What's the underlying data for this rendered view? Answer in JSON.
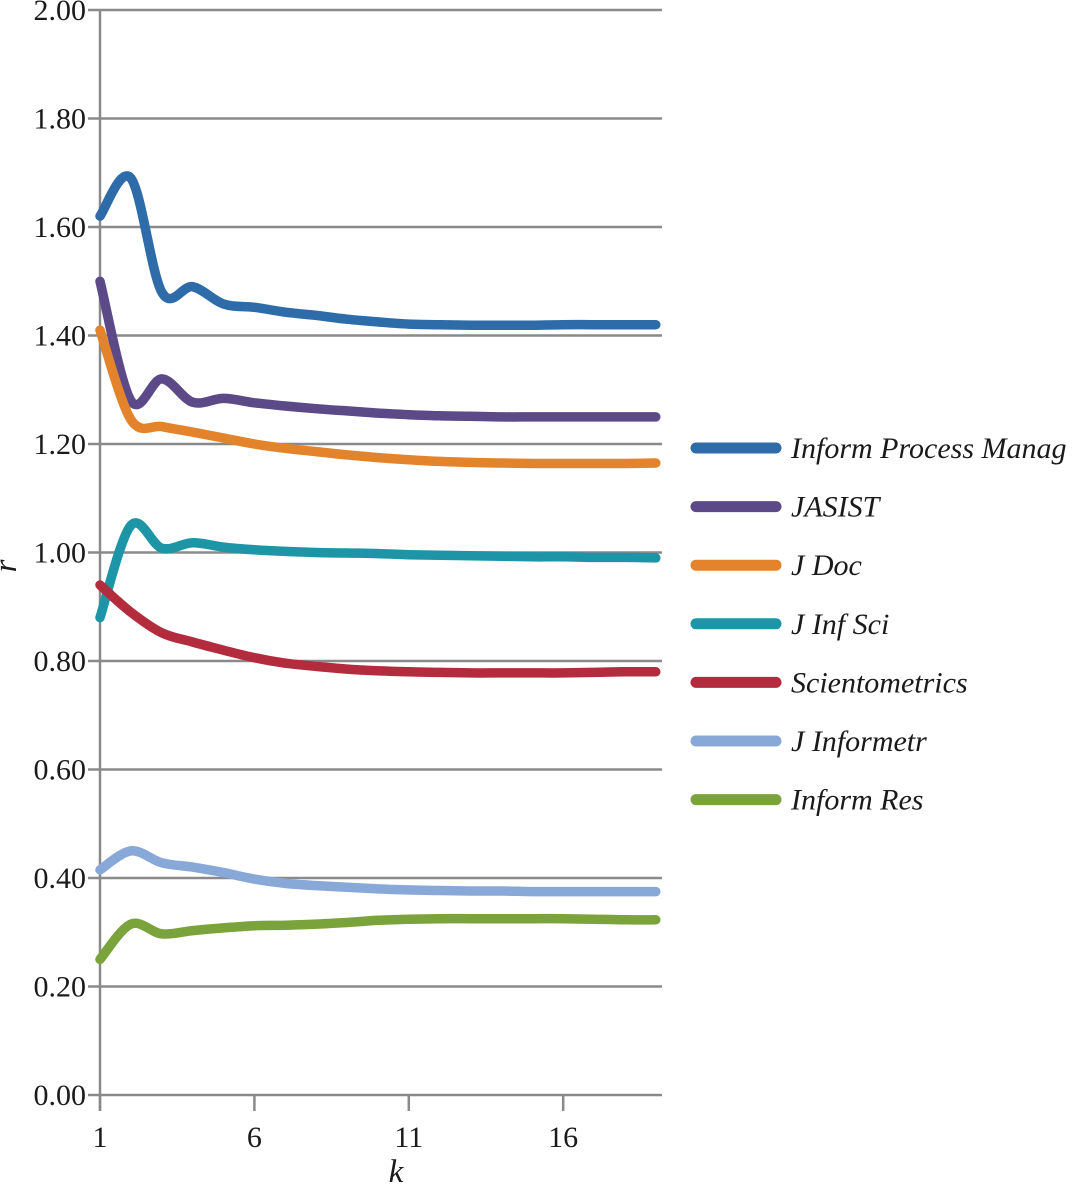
{
  "figure": {
    "background": "#ffffff",
    "grid_color": "#8a8a8a",
    "text_color": "#1a1a1a"
  },
  "chart_data": {
    "type": "line",
    "title": "",
    "xlabel": "k",
    "ylabel": "r",
    "xlim": [
      1,
      19.2
    ],
    "ylim": [
      0,
      2.0
    ],
    "x_ticks": [
      1,
      6,
      11,
      16
    ],
    "y_ticks": [
      0.0,
      0.2,
      0.4,
      0.6,
      0.8,
      1.0,
      1.2,
      1.4,
      1.6,
      1.8,
      2.0
    ],
    "grid": "horizontal",
    "legend_position": "right",
    "x": [
      1,
      2,
      3,
      4,
      5,
      6,
      7,
      8,
      9,
      10,
      11,
      12,
      13,
      14,
      15,
      16,
      17,
      18,
      19
    ],
    "series": [
      {
        "name": "Inform Process Manag",
        "color": "#2d6ca9",
        "values": [
          1.62,
          1.69,
          1.48,
          1.49,
          1.458,
          1.452,
          1.443,
          1.437,
          1.43,
          1.425,
          1.421,
          1.42,
          1.419,
          1.419,
          1.419,
          1.42,
          1.42,
          1.42,
          1.42
        ]
      },
      {
        "name": "JASIST",
        "color": "#5b4a87",
        "values": [
          1.5,
          1.28,
          1.32,
          1.277,
          1.284,
          1.276,
          1.27,
          1.265,
          1.261,
          1.257,
          1.254,
          1.252,
          1.251,
          1.25,
          1.25,
          1.25,
          1.25,
          1.25,
          1.25
        ]
      },
      {
        "name": "J Doc",
        "color": "#e3842c",
        "values": [
          1.41,
          1.245,
          1.232,
          1.222,
          1.211,
          1.2,
          1.192,
          1.186,
          1.18,
          1.175,
          1.171,
          1.168,
          1.166,
          1.165,
          1.164,
          1.164,
          1.164,
          1.164,
          1.165
        ]
      },
      {
        "name": "J Inf Sci",
        "color": "#1e95a7",
        "values": [
          0.88,
          1.05,
          1.008,
          1.018,
          1.01,
          1.005,
          1.002,
          1.0,
          0.999,
          0.998,
          0.996,
          0.995,
          0.994,
          0.993,
          0.992,
          0.992,
          0.991,
          0.991,
          0.99
        ]
      },
      {
        "name": "Scientometrics",
        "color": "#b32c3e",
        "values": [
          0.94,
          0.89,
          0.852,
          0.835,
          0.82,
          0.806,
          0.796,
          0.79,
          0.785,
          0.782,
          0.78,
          0.779,
          0.778,
          0.778,
          0.778,
          0.778,
          0.779,
          0.78,
          0.78
        ]
      },
      {
        "name": "J Informetr",
        "color": "#88a8d8",
        "values": [
          0.415,
          0.45,
          0.428,
          0.42,
          0.41,
          0.398,
          0.39,
          0.386,
          0.383,
          0.38,
          0.378,
          0.377,
          0.376,
          0.376,
          0.375,
          0.375,
          0.375,
          0.375,
          0.375
        ]
      },
      {
        "name": "Inform Res",
        "color": "#7aa33c",
        "values": [
          0.25,
          0.315,
          0.297,
          0.303,
          0.308,
          0.312,
          0.313,
          0.315,
          0.318,
          0.322,
          0.324,
          0.325,
          0.325,
          0.325,
          0.325,
          0.325,
          0.324,
          0.323,
          0.323
        ]
      }
    ]
  }
}
